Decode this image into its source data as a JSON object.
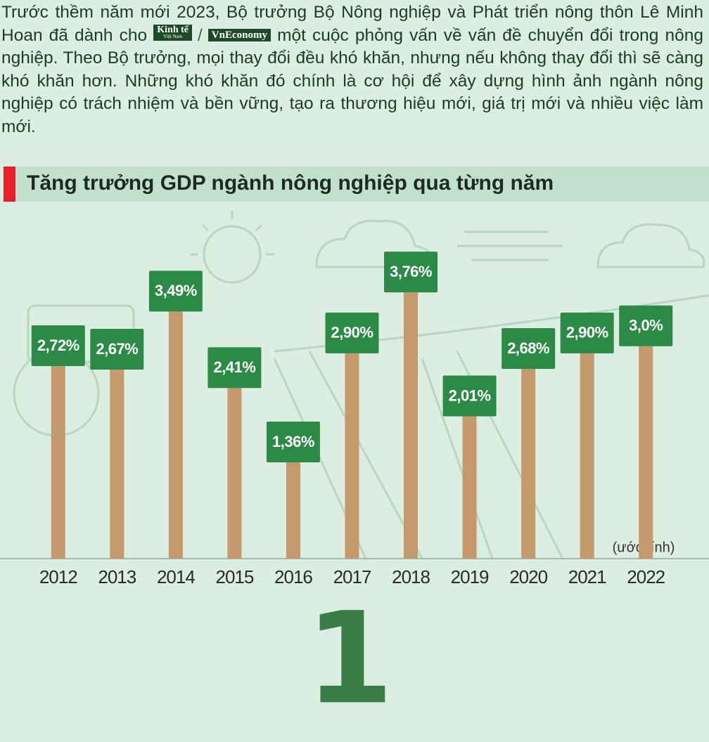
{
  "intro": {
    "before": "Trước thềm năm mới 2023, Bộ trưởng Bộ Nông nghiệp và Phát triển nông thôn Lê Minh Hoan đã dành cho",
    "logo_1": "Kinh tế",
    "logo_1_sub": "Việt Nam",
    "separator": "/",
    "logo_2": "VnEconomy",
    "after": "một cuộc phỏng vấn về vấn đề chuyển đổi trong nông nghiệp. Theo Bộ trưởng, mọi thay đổi đều khó khăn, nhưng nếu không thay đổi thì sẽ càng khó khăn hơn. Những khó khăn đó chính là cơ hội để xây dựng hình ảnh ngành nông nghiệp có trách nhiệm và bền vững, tạo ra thương hiệu mới, giá trị mới và nhiều việc làm mới."
  },
  "chart_data": {
    "type": "bar",
    "title": "Tăng trưởng GDP ngành nông nghiệp qua từng năm",
    "categories": [
      "2012",
      "2013",
      "2014",
      "2015",
      "2016",
      "2017",
      "2018",
      "2019",
      "2020",
      "2021",
      "2022"
    ],
    "values": [
      2.72,
      2.67,
      3.49,
      2.41,
      1.36,
      2.9,
      3.76,
      2.01,
      2.68,
      2.9,
      3.0
    ],
    "value_labels": [
      "2,72%",
      "2,67%",
      "3,49%",
      "2,41%",
      "1,36%",
      "2,90%",
      "3,76%",
      "2,01%",
      "2,68%",
      "2,90%",
      "3,0%"
    ],
    "color": "#c49a6c",
    "label_color": "#2c8a47",
    "annotation": "(ước tính)",
    "ylim": [
      0,
      4
    ]
  },
  "page_number": "1"
}
